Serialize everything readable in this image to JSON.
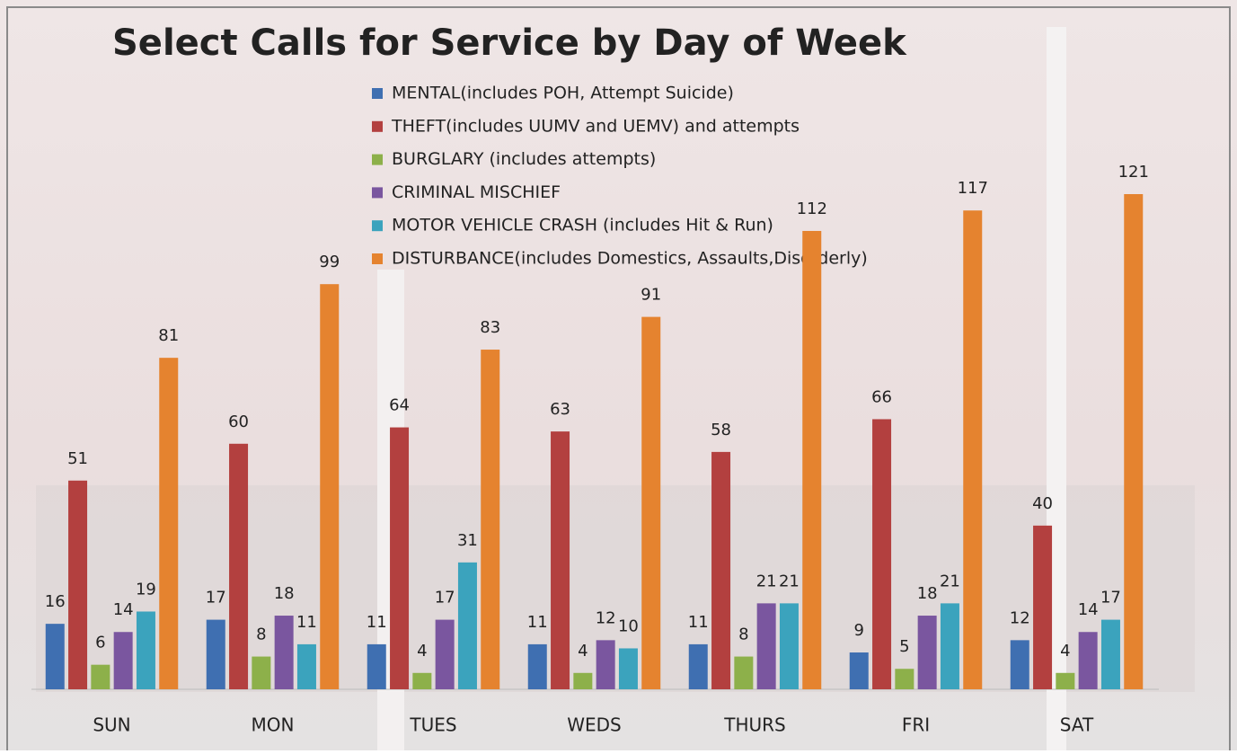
{
  "chart_data": {
    "type": "bar",
    "title": "Select Calls for Service by Day of Week",
    "categories": [
      "SUN",
      "MON",
      "TUES",
      "WEDS",
      "THURS",
      "FRI",
      "SAT"
    ],
    "series": [
      {
        "name": "MENTAL(includes POH, Attempt Suicide)",
        "color": "#3f6fb1",
        "values": [
          16,
          17,
          11,
          11,
          11,
          9,
          12
        ]
      },
      {
        "name": "THEFT(includes UUMV and UEMV) and attempts",
        "color": "#b3403f",
        "values": [
          51,
          60,
          64,
          63,
          58,
          66,
          40
        ]
      },
      {
        "name": "BURGLARY (includes attempts)",
        "color": "#8db04a",
        "values": [
          6,
          8,
          4,
          4,
          8,
          5,
          4
        ]
      },
      {
        "name": "CRIMINAL MISCHIEF",
        "color": "#7a569f",
        "values": [
          14,
          18,
          17,
          12,
          21,
          18,
          14
        ]
      },
      {
        "name": "MOTOR VEHICLE CRASH (includes Hit & Run)",
        "color": "#3ba3bd",
        "values": [
          19,
          11,
          31,
          10,
          21,
          21,
          17
        ]
      },
      {
        "name": "DISTURBANCE(includes Domestics, Assaults,Disorderly)",
        "color": "#e5832f",
        "values": [
          81,
          99,
          83,
          91,
          112,
          117,
          121
        ]
      }
    ]
  }
}
